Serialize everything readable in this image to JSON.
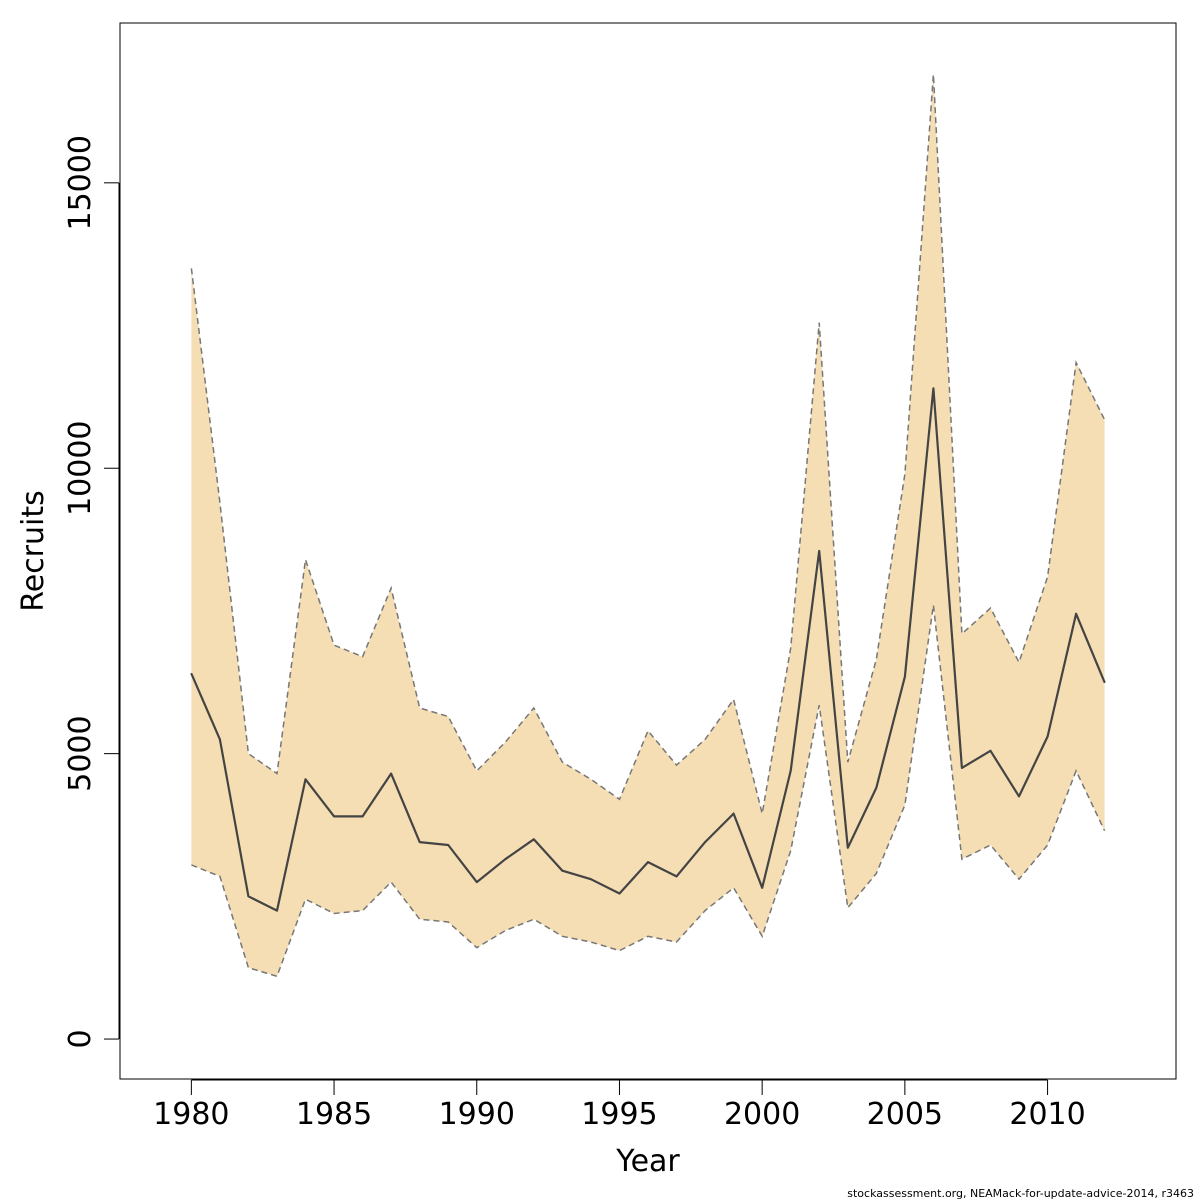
{
  "chart_data": {
    "type": "area",
    "xlabel": "Year",
    "ylabel": "Recruits",
    "xlim": [
      1977.5,
      2014.5
    ],
    "ylim": [
      -700,
      17800
    ],
    "x_ticks": [
      1980,
      1985,
      1990,
      1995,
      2000,
      2005,
      2010
    ],
    "y_ticks": [
      0,
      5000,
      10000,
      15000
    ],
    "grid": false,
    "legend": "none",
    "x": [
      1980,
      1981,
      1982,
      1983,
      1984,
      1985,
      1986,
      1987,
      1988,
      1989,
      1990,
      1991,
      1992,
      1993,
      1994,
      1995,
      1996,
      1997,
      1998,
      1999,
      2000,
      2001,
      2002,
      2003,
      2004,
      2005,
      2006,
      2007,
      2008,
      2009,
      2010,
      2011,
      2012
    ],
    "series": [
      {
        "role": "estimate",
        "values": [
          6400,
          5250,
          2500,
          2250,
          4550,
          3900,
          3900,
          4650,
          3450,
          3400,
          2750,
          3150,
          3500,
          2950,
          2800,
          2550,
          3100,
          2850,
          3450,
          3950,
          2650,
          4700,
          8550,
          3350,
          4400,
          6350,
          11400,
          4750,
          5050,
          4250,
          5300,
          7450,
          6250
        ],
        "color": "#444444"
      },
      {
        "role": "upper-bound",
        "values": [
          13500,
          9400,
          5000,
          4650,
          8400,
          6900,
          6700,
          7900,
          5800,
          5650,
          4700,
          5200,
          5800,
          4850,
          4550,
          4200,
          5400,
          4800,
          5250,
          5950,
          3950,
          6850,
          12550,
          4850,
          6650,
          9900,
          16900,
          7100,
          7550,
          6600,
          8100,
          11850,
          10850
        ],
        "color": "#777777"
      },
      {
        "role": "lower-bound",
        "values": [
          3050,
          2850,
          1250,
          1100,
          2450,
          2200,
          2250,
          2750,
          2100,
          2050,
          1600,
          1900,
          2100,
          1800,
          1700,
          1550,
          1800,
          1700,
          2250,
          2650,
          1800,
          3300,
          5850,
          2300,
          2900,
          4100,
          7600,
          3150,
          3400,
          2800,
          3400,
          4700,
          3650
        ],
        "color": "#777777"
      }
    ],
    "band_color": "#f5deb3",
    "caption": "stockassessment.org, NEAMack-for-update-advice-2014, r3463"
  }
}
